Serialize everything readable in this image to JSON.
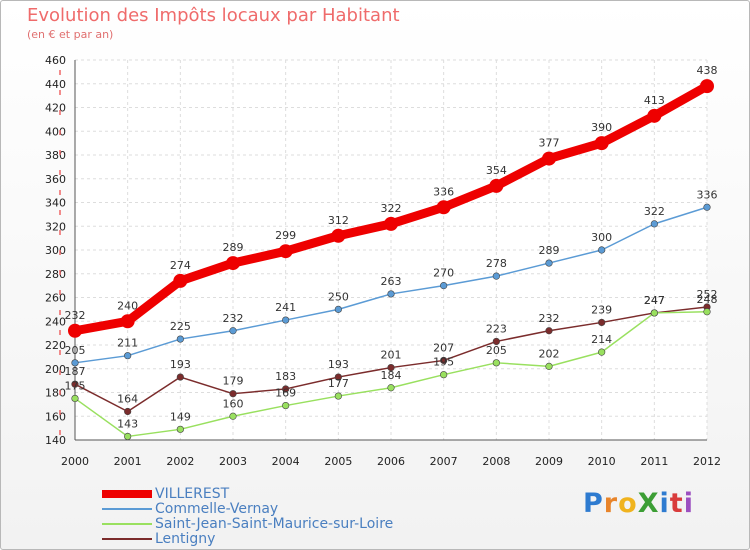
{
  "title": "Evolution des Impôts locaux par Habitant",
  "subtitle": "(en € et par an)",
  "logo_text": "ProXiti",
  "logo_letters": [
    {
      "char": "P",
      "color": "#2e7bd0"
    },
    {
      "char": "r",
      "color": "#e8842a"
    },
    {
      "char": "o",
      "color": "#f0b31e"
    },
    {
      "char": "X",
      "color": "#3c9e35"
    },
    {
      "char": "i",
      "color": "#2e7bd0"
    },
    {
      "char": "t",
      "color": "#d93c3c"
    },
    {
      "char": "i",
      "color": "#9c4fc0"
    }
  ],
  "chart_data": {
    "type": "line",
    "x": [
      2000,
      2001,
      2002,
      2003,
      2004,
      2005,
      2006,
      2007,
      2008,
      2009,
      2010,
      2011,
      2012
    ],
    "ylim": [
      140,
      460
    ],
    "yticks": [
      140,
      160,
      180,
      200,
      220,
      240,
      260,
      280,
      300,
      320,
      340,
      360,
      380,
      400,
      420,
      440,
      460
    ],
    "grid": true,
    "legend_position": "bottom-left",
    "series": [
      {
        "name": "VILLEREST",
        "color": "#ee0000",
        "width": "thick",
        "values": [
          232,
          240,
          274,
          289,
          299,
          312,
          322,
          336,
          354,
          377,
          390,
          413,
          438
        ],
        "labels": [
          "232",
          "240",
          "274",
          "289",
          "299",
          "312",
          "322",
          "336",
          "354",
          "377",
          "390",
          "413",
          "438"
        ]
      },
      {
        "name": "Commelle-Vernay",
        "color": "#5b9bd5",
        "width": "thin",
        "values": [
          205,
          211,
          225,
          232,
          241,
          250,
          263,
          270,
          278,
          289,
          300,
          322,
          336
        ],
        "labels": [
          "205",
          "211",
          "225",
          "232",
          "241",
          "250",
          "263",
          "270",
          "278",
          "289",
          "300",
          "322",
          "336"
        ]
      },
      {
        "name": "Saint-Jean-Saint-Maurice-sur-Loire",
        "color": "#99e05f",
        "width": "thin",
        "values": [
          175,
          143,
          149,
          160,
          169,
          177,
          184,
          195,
          205,
          202,
          214,
          247,
          248
        ],
        "labels": [
          "175",
          "143",
          "149",
          "160",
          "169",
          "177",
          "184",
          "195",
          "205",
          "202",
          "214",
          "247",
          "248"
        ]
      },
      {
        "name": "Lentigny",
        "color": "#7b2c2c",
        "width": "thin",
        "values": [
          187,
          164,
          193,
          179,
          183,
          193,
          201,
          207,
          223,
          232,
          239,
          247,
          252
        ],
        "labels": [
          "187",
          "164",
          "193",
          "179",
          "183",
          "193",
          "201",
          "207",
          "223",
          "232",
          "239",
          "247",
          "252"
        ]
      }
    ]
  }
}
